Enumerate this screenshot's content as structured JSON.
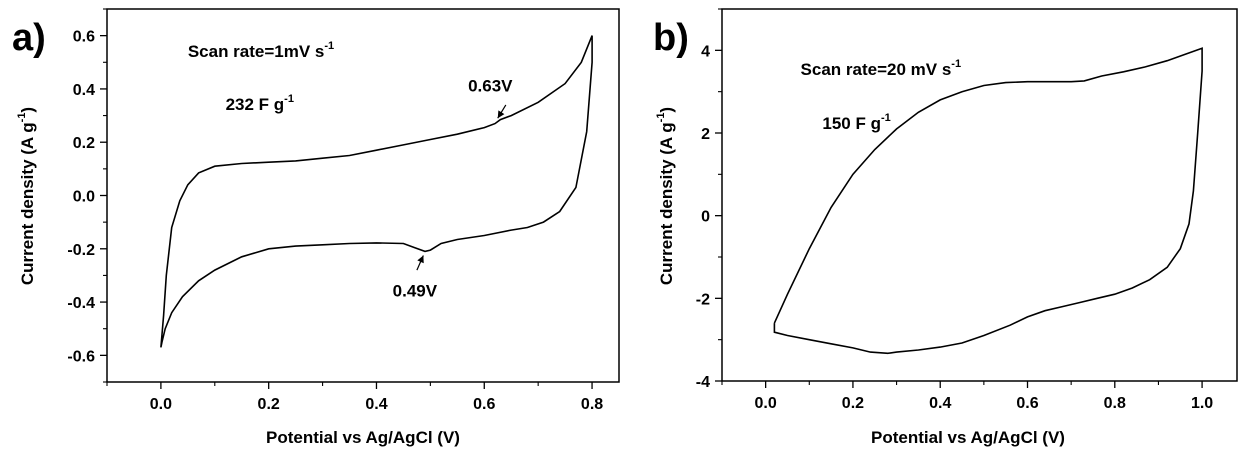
{
  "chart_data": [
    {
      "type": "line",
      "panel_label": "a)",
      "xlabel": "Potential vs Ag/AgCl (V)",
      "ylabel": "Current density (A g",
      "ylabel_superscript": "-1",
      "ylabel_suffix": ")",
      "xlim": [
        -0.1,
        0.85
      ],
      "ylim": [
        -0.7,
        0.7
      ],
      "xticks": [
        0.0,
        0.2,
        0.4,
        0.6,
        0.8
      ],
      "xtick_labels": [
        "0.0",
        "0.2",
        "0.4",
        "0.6",
        "0.8"
      ],
      "yticks": [
        -0.6,
        -0.4,
        -0.2,
        0.0,
        0.2,
        0.4,
        0.6
      ],
      "ytick_labels": [
        "-0.6",
        "-0.4",
        "-0.2",
        "0.0",
        "0.2",
        "0.4",
        "0.6"
      ],
      "grid": false,
      "annotations": {
        "scan_rate": {
          "text": "Scan rate=1mV s",
          "sup": "-1",
          "x": 0.05,
          "y": 0.52
        },
        "capacitance": {
          "text": "232 F g",
          "sup": "-1",
          "x": 0.12,
          "y": 0.32
        },
        "peak_anodic": {
          "text": "0.63V",
          "x": 0.57,
          "y": 0.39,
          "arrow_from": [
            0.64,
            0.34
          ],
          "arrow_to": [
            0.625,
            0.29
          ]
        },
        "peak_cathodic": {
          "text": "0.49V",
          "x": 0.43,
          "y": -0.38,
          "arrow_from": [
            0.475,
            -0.28
          ],
          "arrow_to": [
            0.487,
            -0.225
          ]
        }
      },
      "series": [
        {
          "x": [
            0.0,
            0.005,
            0.01,
            0.02,
            0.035,
            0.05,
            0.07,
            0.1,
            0.15,
            0.2,
            0.25,
            0.3,
            0.35,
            0.4,
            0.45,
            0.5,
            0.55,
            0.6,
            0.62,
            0.63,
            0.65,
            0.7,
            0.75,
            0.78,
            0.8,
            0.8,
            0.79,
            0.77,
            0.74,
            0.71,
            0.68,
            0.65,
            0.6,
            0.55,
            0.52,
            0.5,
            0.49,
            0.47,
            0.45,
            0.4,
            0.35,
            0.3,
            0.25,
            0.2,
            0.15,
            0.1,
            0.07,
            0.04,
            0.02,
            0.008,
            0.002,
            0.0,
            0.0
          ],
          "y": [
            -0.57,
            -0.45,
            -0.3,
            -0.12,
            -0.02,
            0.04,
            0.085,
            0.11,
            0.12,
            0.125,
            0.13,
            0.14,
            0.15,
            0.17,
            0.19,
            0.21,
            0.23,
            0.255,
            0.27,
            0.285,
            0.3,
            0.35,
            0.42,
            0.5,
            0.6,
            0.5,
            0.24,
            0.03,
            -0.06,
            -0.1,
            -0.12,
            -0.13,
            -0.15,
            -0.165,
            -0.18,
            -0.205,
            -0.21,
            -0.195,
            -0.18,
            -0.178,
            -0.18,
            -0.185,
            -0.19,
            -0.2,
            -0.23,
            -0.28,
            -0.32,
            -0.38,
            -0.44,
            -0.5,
            -0.55,
            -0.57,
            -0.57
          ]
        }
      ]
    },
    {
      "type": "line",
      "panel_label": "b)",
      "xlabel": "Potential vs Ag/AgCl (V)",
      "ylabel": "Current density (A g",
      "ylabel_superscript": "-1",
      "ylabel_suffix": ")",
      "xlim": [
        -0.1,
        1.08
      ],
      "ylim": [
        -4,
        5
      ],
      "xticks": [
        0.0,
        0.2,
        0.4,
        0.6,
        0.8,
        1.0
      ],
      "xtick_labels": [
        "0.0",
        "0.2",
        "0.4",
        "0.6",
        "0.8",
        "1.0"
      ],
      "yticks": [
        -4,
        -2,
        0,
        2,
        4
      ],
      "ytick_labels": [
        "-4",
        "-2",
        "0",
        "2",
        "4"
      ],
      "grid": false,
      "annotations": {
        "scan_rate": {
          "text": "Scan rate=20 mV s",
          "sup": "-1",
          "x": 0.08,
          "y": 3.4
        },
        "capacitance": {
          "text": "150 F g",
          "sup": "-1",
          "x": 0.13,
          "y": 2.1
        }
      },
      "series": [
        {
          "x": [
            0.02,
            0.05,
            0.1,
            0.15,
            0.2,
            0.25,
            0.3,
            0.35,
            0.4,
            0.45,
            0.5,
            0.55,
            0.6,
            0.65,
            0.7,
            0.73,
            0.77,
            0.82,
            0.87,
            0.92,
            0.96,
            1.0,
            1.0,
            0.99,
            0.98,
            0.97,
            0.95,
            0.92,
            0.88,
            0.84,
            0.8,
            0.76,
            0.72,
            0.68,
            0.64,
            0.6,
            0.56,
            0.5,
            0.45,
            0.4,
            0.35,
            0.3,
            0.28,
            0.24,
            0.2,
            0.15,
            0.1,
            0.05,
            0.02,
            0.02
          ],
          "y": [
            -2.6,
            -1.9,
            -0.8,
            0.2,
            1.0,
            1.6,
            2.1,
            2.5,
            2.8,
            3.0,
            3.15,
            3.22,
            3.24,
            3.24,
            3.24,
            3.26,
            3.38,
            3.48,
            3.6,
            3.75,
            3.9,
            4.05,
            3.5,
            2.0,
            0.6,
            -0.2,
            -0.8,
            -1.25,
            -1.55,
            -1.75,
            -1.9,
            -2.0,
            -2.1,
            -2.2,
            -2.3,
            -2.45,
            -2.65,
            -2.9,
            -3.08,
            -3.18,
            -3.25,
            -3.3,
            -3.33,
            -3.3,
            -3.2,
            -3.1,
            -3.0,
            -2.9,
            -2.82,
            -2.6
          ]
        }
      ]
    }
  ]
}
